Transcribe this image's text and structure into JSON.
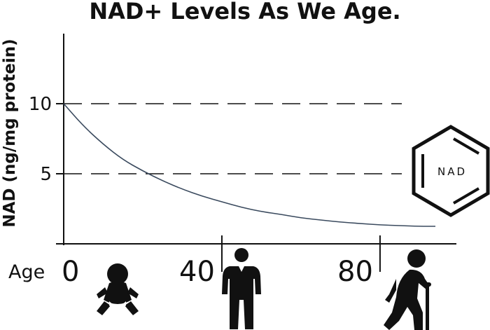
{
  "chart_data": {
    "type": "line",
    "title": "NAD+ Levels As We Age.",
    "ylabel": "NAD (ng/mg protein)",
    "xlabel": "Age",
    "xlim": [
      0,
      94
    ],
    "ylim": [
      0,
      15
    ],
    "yticks": [
      10,
      5
    ],
    "xticks": [
      0,
      40,
      80
    ],
    "reference_lines": [
      10,
      5
    ],
    "series": [
      {
        "values": [
          {
            "x": 0,
            "y": 10.0
          },
          {
            "x": 5,
            "y": 8.4
          },
          {
            "x": 10,
            "y": 7.1
          },
          {
            "x": 15,
            "y": 6.0
          },
          {
            "x": 20,
            "y": 5.2
          },
          {
            "x": 25,
            "y": 4.5
          },
          {
            "x": 30,
            "y": 3.9
          },
          {
            "x": 35,
            "y": 3.4
          },
          {
            "x": 40,
            "y": 3.0
          },
          {
            "x": 45,
            "y": 2.6
          },
          {
            "x": 50,
            "y": 2.3
          },
          {
            "x": 55,
            "y": 2.1
          },
          {
            "x": 60,
            "y": 1.85
          },
          {
            "x": 65,
            "y": 1.7
          },
          {
            "x": 70,
            "y": 1.55
          },
          {
            "x": 75,
            "y": 1.45
          },
          {
            "x": 80,
            "y": 1.35
          },
          {
            "x": 85,
            "y": 1.3
          },
          {
            "x": 90,
            "y": 1.25
          },
          {
            "x": 94,
            "y": 1.25
          }
        ]
      }
    ],
    "line_color": "#3a4a5e",
    "grid": false
  },
  "badge": {
    "label": "NAD",
    "icon": "benzene-ring-icon"
  },
  "age_icons": [
    "baby-icon",
    "adult-man-icon",
    "elderly-man-icon"
  ]
}
